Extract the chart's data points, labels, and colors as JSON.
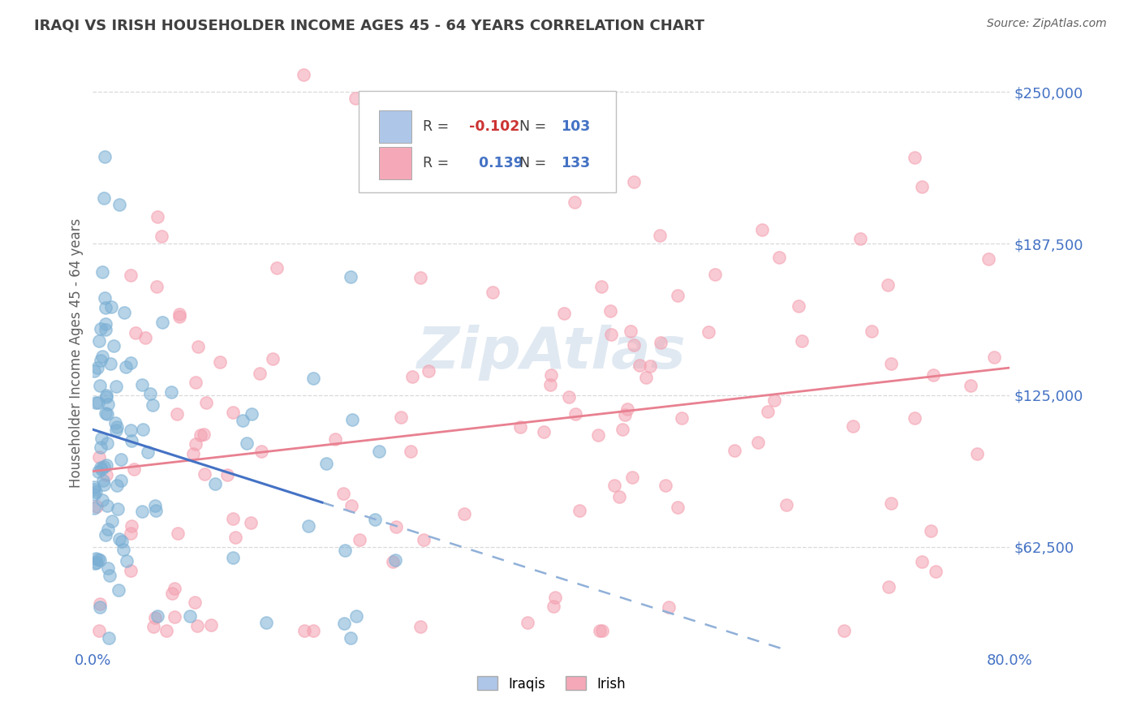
{
  "title": "IRAQI VS IRISH HOUSEHOLDER INCOME AGES 45 - 64 YEARS CORRELATION CHART",
  "source": "Source: ZipAtlas.com",
  "ylabel": "Householder Income Ages 45 - 64 years",
  "xlim": [
    0.0,
    0.8
  ],
  "ylim": [
    20000,
    265000
  ],
  "yticks": [
    62500,
    125000,
    187500,
    250000
  ],
  "ytick_labels": [
    "$62,500",
    "$125,000",
    "$187,500",
    "$250,000"
  ],
  "xtick_labels": [
    "0.0%",
    "",
    "",
    "",
    "",
    "",
    "",
    "",
    "80.0%"
  ],
  "iraqi_R": -0.102,
  "iraqi_N": 103,
  "irish_R": 0.139,
  "irish_N": 133,
  "iraqi_scatter_color": "#7bafd4",
  "irish_scatter_color": "#f4a0b0",
  "iraqi_line_solid_color": "#4472c4",
  "iraqi_line_dash_color": "#90b0d8",
  "irish_line_color": "#e88090",
  "iraqi_legend_box": "#aec6e8",
  "irish_legend_box": "#f4a8b8",
  "watermark_color": "#c8d8e8",
  "background_color": "#ffffff",
  "title_color": "#404040",
  "axis_label_color": "#606060",
  "tick_color": "#4472c4",
  "grid_color": "#d0d0d0",
  "legend_border_color": "#c0c0c0",
  "R_label_color": "#404040",
  "R_neg_color": "#cc3333",
  "R_pos_color": "#4472c4",
  "N_color": "#4472c4"
}
